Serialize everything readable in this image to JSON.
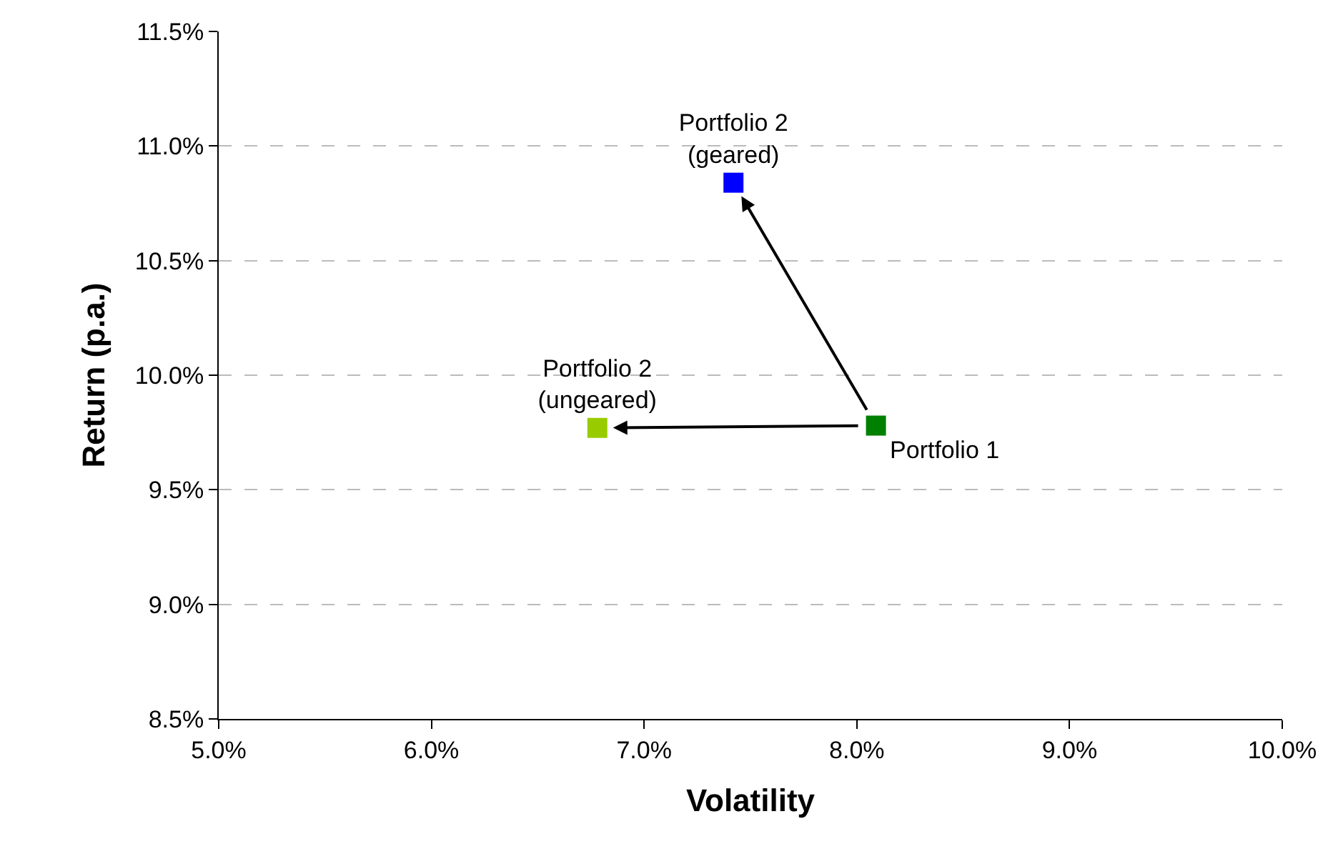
{
  "chart_data": {
    "type": "scatter",
    "xlabel": "Volatility",
    "ylabel": "Return (p.a.)",
    "series": [
      {
        "name": "Portfolio 1",
        "color": "#008000",
        "x": [
          8.09
        ],
        "values": [
          9.78
        ]
      },
      {
        "name": "Portfolio 2\n(ungeared)",
        "color": "#99cc00",
        "x": [
          6.78
        ],
        "values": [
          9.77
        ]
      },
      {
        "name": "Portfolio 2\n(geared)",
        "color": "#0000ff",
        "x": [
          7.42
        ],
        "values": [
          10.84
        ]
      }
    ],
    "xlim": [
      5,
      10
    ],
    "xticks": [
      {
        "value": 5,
        "label": "5.0%"
      },
      {
        "value": 6,
        "label": "6.0%"
      },
      {
        "value": 7,
        "label": "7.0%"
      },
      {
        "value": 8,
        "label": "8.0%"
      },
      {
        "value": 9,
        "label": "9.0%"
      },
      {
        "value": 10,
        "label": "10.0%"
      }
    ],
    "ylim": [
      8.5,
      11.5
    ],
    "yticks": [
      {
        "value": 8.5,
        "label": "8.5%"
      },
      {
        "value": 9,
        "label": "9.0%"
      },
      {
        "value": 9.5,
        "label": "9.5%"
      },
      {
        "value": 10,
        "label": "10.0%"
      },
      {
        "value": 10.5,
        "label": "10.5%"
      },
      {
        "value": 11,
        "label": "11.0%"
      },
      {
        "value": 11.5,
        "label": "11.5%"
      }
    ],
    "grid": "y",
    "legend": false,
    "marker": "square"
  }
}
